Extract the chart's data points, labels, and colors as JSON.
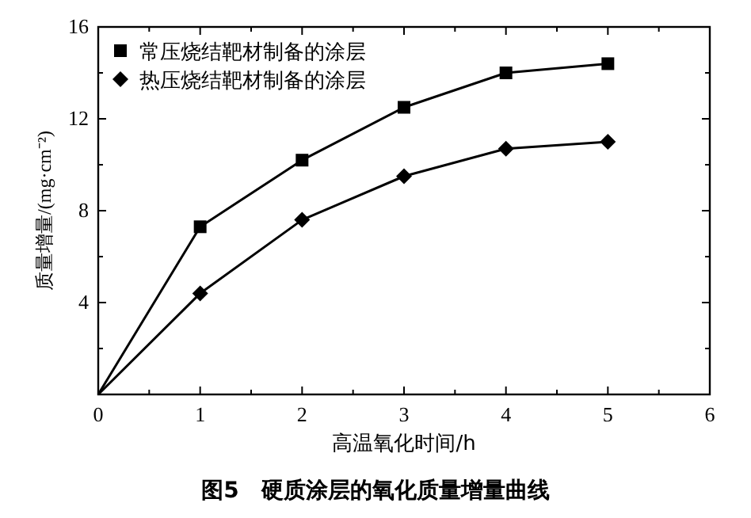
{
  "chart_data": {
    "type": "line",
    "title": "图5　硬质涂层的氧化质量增量曲线",
    "xlabel": "高温氧化时间/h",
    "ylabel": "质量增量/(mg·cm⁻²)",
    "x": [
      0,
      1,
      2,
      3,
      4,
      5
    ],
    "series": [
      {
        "name": "常压烧结靶材制备的涂层",
        "color": "#000000",
        "marker": "square",
        "values": [
          0,
          7.3,
          10.2,
          12.5,
          14.0,
          14.4
        ]
      },
      {
        "name": "热压烧结靶材制备的涂层",
        "color": "#000000",
        "marker": "diamond",
        "values": [
          0,
          4.4,
          7.6,
          9.5,
          10.7,
          11.0
        ]
      }
    ],
    "xlim": [
      0,
      6
    ],
    "xticks": [
      0,
      1,
      2,
      3,
      4,
      5,
      6
    ],
    "ylim": [
      0,
      16
    ],
    "yticks": [
      {
        "value": 0,
        "label": null
      },
      4,
      8,
      12,
      16
    ],
    "grid": false,
    "legend": "top left",
    "line_style": "solid"
  }
}
